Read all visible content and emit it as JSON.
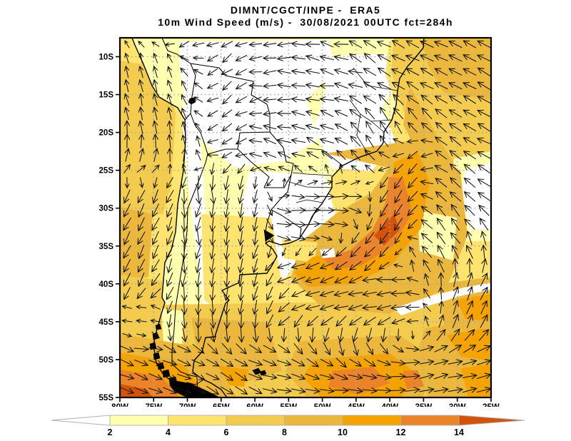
{
  "title": {
    "line1": "DIMNT/CGCT/INPE -  ERA5",
    "line2": "10m Wind Speed (m/s) -  30/08/2021 00UTC fct=284h"
  },
  "axes": {
    "lat_ticks": [
      "10S",
      "15S",
      "20S",
      "25S",
      "30S",
      "35S",
      "40S",
      "45S",
      "50S",
      "55S"
    ],
    "lon_ticks": [
      "80W",
      "75W",
      "70W",
      "65W",
      "60W",
      "55W",
      "50W",
      "45W",
      "40W",
      "35W",
      "30W",
      "25W"
    ]
  },
  "colorbar": {
    "labels": [
      "2",
      "4",
      "6",
      "8",
      "10",
      "12",
      "14"
    ],
    "segment_colors": [
      "#FFFFB0",
      "#FEE36E",
      "#F3CB4E",
      "#EBB73C",
      "#F4A300",
      "#EB8428"
    ],
    "under_color": "#FFFFFF",
    "over_color": "#D35408",
    "units": "m/s"
  },
  "chart_data": {
    "type": "heatmap",
    "title": "DIMNT/CGCT/INPE - ERA5",
    "subtitle": "10m Wind Speed (m/s) - 30/08/2021 00UTC fct=284h",
    "field": "10m wind speed",
    "units": "m/s",
    "model": "ERA5",
    "center": "DIMNT/CGCT/INPE",
    "valid_date": "30/08/2021",
    "valid_hour": "00UTC",
    "forecast": "fct=284h",
    "overlay": "10m wind direction arrows on a regular grid",
    "grid": "5-degree dotted graticule",
    "xlabel_ticks": [
      "80W",
      "75W",
      "70W",
      "65W",
      "60W",
      "55W",
      "50W",
      "45W",
      "40W",
      "35W",
      "30W",
      "25W"
    ],
    "ylabel_ticks": [
      "10S",
      "15S",
      "20S",
      "25S",
      "30S",
      "35S",
      "40S",
      "45S",
      "50S",
      "55S"
    ],
    "lon_range": [
      "80W",
      "25W"
    ],
    "lat_range": [
      "55S",
      "~7.5S"
    ],
    "colorbar_levels": [
      2,
      4,
      6,
      8,
      10,
      12,
      14
    ],
    "colorbar_colors": [
      "#FFFFB0",
      "#FEE36E",
      "#F3CB4E",
      "#EBB73C",
      "#F4A300",
      "#EB8428"
    ],
    "colorbar_under": "#FFFFFF",
    "colorbar_over": "#D35408",
    "readings": [
      {
        "location": "South Atlantic cyclonic comma band near 32S 42W",
        "wind_speed_ms": "12-14"
      },
      {
        "location": "Southeast Pacific / Drake corner near 54S 78W",
        "wind_speed_ms": "12-16"
      },
      {
        "location": "Tropical Atlantic trade-wind belt 10-20S",
        "wind_speed_ms": "6-10"
      },
      {
        "location": "Amazon and central Brazil interior",
        "wind_speed_ms": "0-4"
      },
      {
        "location": "Southern Ocean strip 50-55S",
        "wind_speed_ms": "8-14"
      },
      {
        "location": "Andes ridge and central Chile coast",
        "wind_speed_ms": "0-4"
      },
      {
        "location": "Calm spot at vortex centre near 30S 38W",
        "wind_speed_ms": "2-4"
      }
    ]
  }
}
